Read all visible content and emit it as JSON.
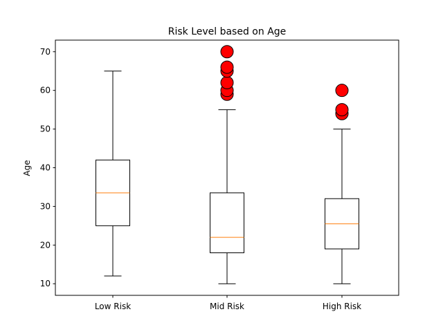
{
  "chart_data": {
    "type": "box",
    "title": "Risk Level based on Age",
    "xlabel": "",
    "ylabel": "Age",
    "ylim": [
      7.0,
      73.0
    ],
    "yticks": [
      10,
      20,
      30,
      40,
      50,
      60,
      70
    ],
    "grid": false,
    "categories": [
      "Low Risk",
      "Mid Risk",
      "High Risk"
    ],
    "boxes": [
      {
        "category": "Low Risk",
        "whisker_low": 12,
        "q1": 25,
        "median": 33.5,
        "q3": 42,
        "whisker_high": 65,
        "outliers": []
      },
      {
        "category": "Mid Risk",
        "whisker_low": 10,
        "q1": 18,
        "median": 22,
        "q3": 33.5,
        "whisker_high": 55,
        "outliers": [
          59,
          60,
          62,
          65,
          66,
          70
        ]
      },
      {
        "category": "High Risk",
        "whisker_low": 10,
        "q1": 19,
        "median": 25.5,
        "q3": 32,
        "whisker_high": 50,
        "outliers": [
          54,
          55,
          60
        ]
      }
    ],
    "colors": {
      "box": "#000000",
      "median": "#ff7f0e",
      "outlier_fill": "#ff0000",
      "outlier_edge": "#000000"
    }
  }
}
